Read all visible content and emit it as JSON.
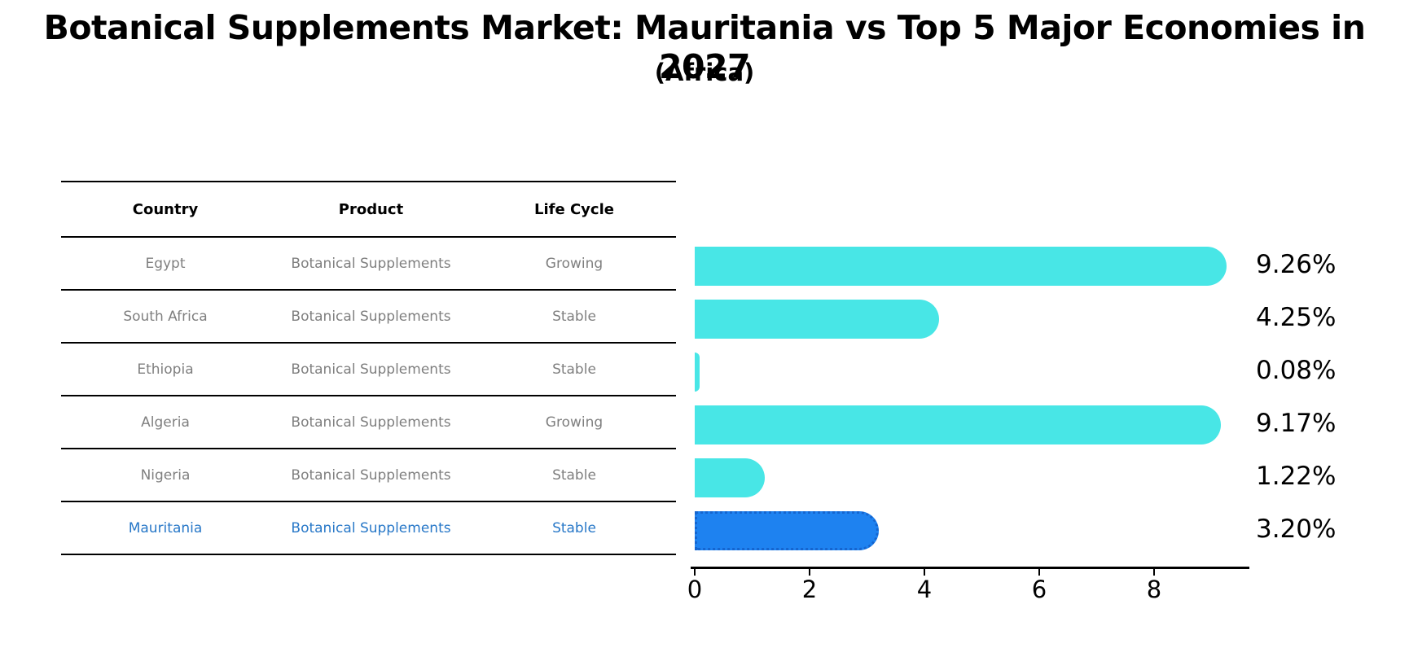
{
  "title": "Botanical Supplements Market: Mauritania vs Top 5 Major Economies in 2027",
  "subtitle": "(Africa)",
  "table": {
    "headers": [
      "Country",
      "Product",
      "Life Cycle"
    ],
    "rows": [
      {
        "country": "Egypt",
        "product": "Botanical Supplements",
        "life_cycle": "Growing",
        "highlight": false
      },
      {
        "country": "South Africa",
        "product": "Botanical Supplements",
        "life_cycle": "Stable",
        "highlight": false
      },
      {
        "country": "Ethiopia",
        "product": "Botanical Supplements",
        "life_cycle": "Stable",
        "highlight": false
      },
      {
        "country": "Algeria",
        "product": "Botanical Supplements",
        "life_cycle": "Growing",
        "highlight": false
      },
      {
        "country": "Nigeria",
        "product": "Botanical Supplements",
        "life_cycle": "Stable",
        "highlight": false
      },
      {
        "country": "Mauritania",
        "product": "Botanical Supplements",
        "life_cycle": "Stable",
        "highlight": true
      }
    ]
  },
  "chart_data": {
    "type": "bar",
    "orientation": "horizontal",
    "title": "Botanical Supplements Market: Mauritania vs Top 5 Major Economies in 2027 (Africa)",
    "categories": [
      "Egypt",
      "South Africa",
      "Ethiopia",
      "Algeria",
      "Nigeria",
      "Mauritania"
    ],
    "values": [
      9.26,
      4.25,
      0.08,
      9.17,
      1.22,
      3.2
    ],
    "value_labels": [
      "9.26%",
      "4.25%",
      "0.08%",
      "9.17%",
      "1.22%",
      "3.20%"
    ],
    "x_ticks": [
      0,
      2,
      4,
      6,
      8
    ],
    "xlim": [
      0,
      9.65
    ],
    "xlabel": "",
    "ylabel": "",
    "grid": false,
    "legend": false,
    "bar_color": "#48e6e6",
    "highlight_color": "#1e82f0",
    "highlight_index": 5,
    "highlight_style": "dotted-border"
  },
  "colors": {
    "normal_text": "#7f7f7f",
    "highlight_text": "#2878c8",
    "axis": "#000000"
  }
}
